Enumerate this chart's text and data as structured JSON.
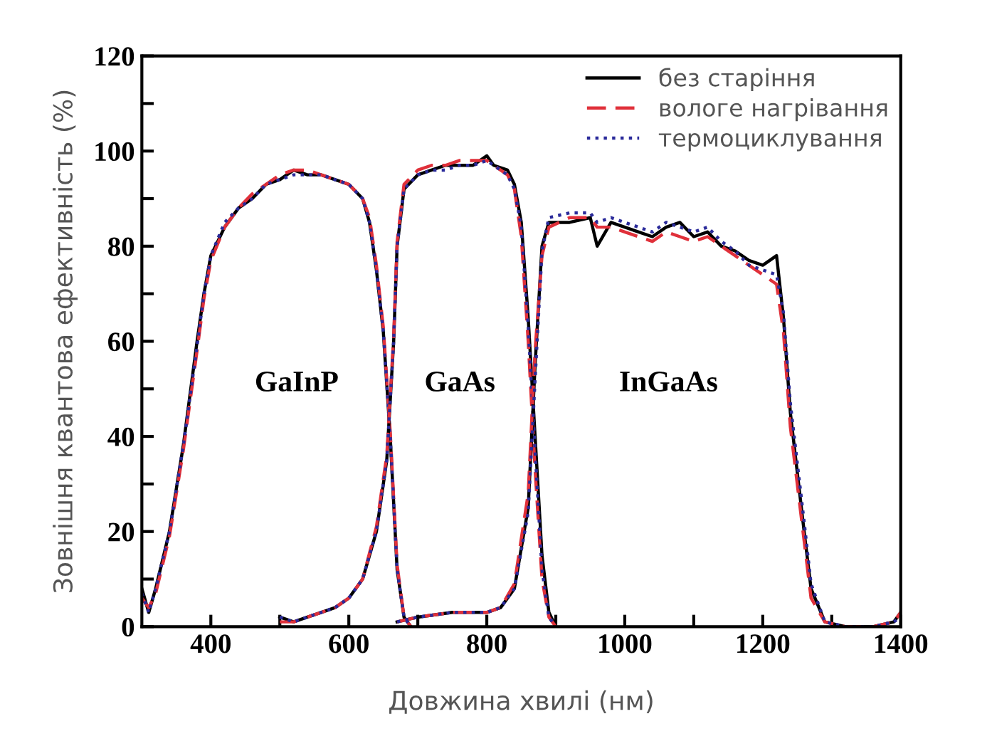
{
  "chart_data": {
    "type": "line",
    "xlabel": "Довжина хвилі (нм)",
    "ylabel": "Зовнішня квантова ефективність (%)",
    "xlim": [
      300,
      1400
    ],
    "ylim": [
      0,
      120
    ],
    "xticks": [
      400,
      {
        "value": 500,
        "label": null
      },
      600,
      {
        "value": 700,
        "label": null
      },
      800,
      {
        "value": 900,
        "label": null
      },
      1000,
      {
        "value": 1100,
        "label": null
      },
      1200,
      {
        "value": 1300,
        "label": null
      },
      1400
    ],
    "yticks": [
      0,
      {
        "value": 10,
        "label": null
      },
      20,
      {
        "value": 30,
        "label": null
      },
      40,
      {
        "value": 50,
        "label": null
      },
      60,
      {
        "value": 70,
        "label": null
      },
      80,
      {
        "value": 90,
        "label": null
      },
      100,
      {
        "value": 110,
        "label": null
      },
      120
    ],
    "grid": false,
    "legend": "top right",
    "marker": "none",
    "annotations": [
      "GaInP",
      "GaAs",
      "InGaAs"
    ],
    "series": [
      {
        "name": "без старіння",
        "color": "#000000",
        "line_style": "solid",
        "x": [
          300,
          310,
          320,
          340,
          360,
          380,
          390,
          400,
          420,
          440,
          460,
          480,
          500,
          520,
          540,
          560,
          580,
          600,
          620,
          630,
          640,
          650,
          660,
          670,
          680,
          690
        ],
        "values": [
          8,
          3,
          8,
          20,
          38,
          60,
          70,
          78,
          84,
          88,
          90,
          93,
          94,
          96,
          95,
          95,
          94,
          93,
          90,
          85,
          75,
          62,
          40,
          12,
          2,
          0
        ]
      },
      {
        "name": "вологе нагрівання",
        "color": "#e0303a",
        "line_style": "dashed",
        "x": [
          300,
          310,
          320,
          340,
          360,
          380,
          390,
          400,
          420,
          440,
          460,
          480,
          500,
          520,
          540,
          560,
          580,
          600,
          620,
          630,
          640,
          650,
          660,
          670,
          680,
          690
        ],
        "values": [
          6,
          4,
          7,
          19,
          37,
          58,
          69,
          77,
          84,
          88,
          91,
          93,
          95,
          96,
          96,
          95,
          94,
          93,
          90,
          86,
          76,
          63,
          41,
          13,
          2,
          0
        ]
      },
      {
        "name": "термоциклування",
        "color": "#2a2a9a",
        "line_style": "dotted",
        "x": [
          300,
          310,
          320,
          340,
          360,
          380,
          390,
          400,
          420,
          440,
          460,
          480,
          500,
          520,
          540,
          560,
          580,
          600,
          620,
          630,
          640,
          650,
          660,
          670,
          680,
          690
        ],
        "values": [
          7,
          3,
          8,
          20,
          38,
          59,
          70,
          78,
          85,
          88,
          90,
          93,
          94,
          95,
          95,
          95,
          94,
          93,
          90,
          85,
          75,
          62,
          40,
          12,
          2,
          0
        ]
      },
      {
        "color": "#000000",
        "line_style": "solid",
        "x": [
          500,
          520,
          540,
          560,
          580,
          600,
          620,
          640,
          655,
          665,
          670,
          680,
          700,
          720,
          740,
          760,
          780,
          800,
          810,
          830,
          840,
          850,
          860,
          870,
          880,
          890,
          900
        ],
        "values": [
          2,
          1,
          2,
          3,
          4,
          6,
          10,
          20,
          35,
          60,
          80,
          92,
          95,
          96,
          97,
          97,
          97,
          99,
          97,
          96,
          93,
          85,
          65,
          40,
          15,
          3,
          0
        ]
      },
      {
        "color": "#e0303a",
        "line_style": "dashed",
        "x": [
          500,
          520,
          540,
          560,
          580,
          600,
          620,
          640,
          655,
          665,
          670,
          680,
          700,
          720,
          740,
          760,
          780,
          800,
          810,
          830,
          840,
          850,
          860,
          870,
          880,
          890,
          900
        ],
        "values": [
          1,
          1,
          2,
          3,
          4,
          6,
          10,
          21,
          36,
          61,
          81,
          93,
          96,
          97,
          97,
          98,
          98,
          98,
          97,
          95,
          92,
          82,
          60,
          33,
          10,
          2,
          0
        ]
      },
      {
        "color": "#2a2a9a",
        "line_style": "dotted",
        "x": [
          500,
          520,
          540,
          560,
          580,
          600,
          620,
          640,
          655,
          665,
          670,
          680,
          700,
          720,
          740,
          760,
          780,
          800,
          810,
          830,
          840,
          850,
          860,
          870,
          880,
          890,
          900
        ],
        "values": [
          2,
          1,
          2,
          3,
          4,
          6,
          10,
          20,
          35,
          60,
          80,
          92,
          95,
          96,
          96,
          97,
          97,
          98,
          97,
          95,
          92,
          84,
          63,
          37,
          12,
          2,
          0
        ]
      },
      {
        "color": "#000000",
        "line_style": "solid",
        "x": [
          670,
          700,
          750,
          800,
          820,
          840,
          860,
          870,
          880,
          890,
          920,
          950,
          960,
          980,
          1000,
          1020,
          1040,
          1060,
          1080,
          1100,
          1120,
          1140,
          1160,
          1180,
          1200,
          1220,
          1230,
          1240,
          1260,
          1270,
          1290,
          1320,
          1360,
          1390,
          1400
        ],
        "values": [
          1,
          2,
          3,
          3,
          4,
          8,
          25,
          55,
          80,
          85,
          85,
          86,
          80,
          85,
          84,
          83,
          82,
          84,
          85,
          82,
          83,
          80,
          79,
          77,
          76,
          78,
          65,
          45,
          20,
          8,
          1,
          0,
          0,
          1,
          3
        ]
      },
      {
        "color": "#e0303a",
        "line_style": "dashed",
        "x": [
          670,
          700,
          750,
          800,
          820,
          840,
          860,
          870,
          880,
          890,
          920,
          950,
          960,
          980,
          1000,
          1020,
          1040,
          1060,
          1080,
          1100,
          1120,
          1140,
          1160,
          1180,
          1200,
          1220,
          1230,
          1240,
          1260,
          1270,
          1290,
          1320,
          1360,
          1390,
          1400
        ],
        "values": [
          1,
          2,
          3,
          3,
          4,
          9,
          28,
          58,
          78,
          84,
          86,
          86,
          84,
          84,
          83,
          82,
          81,
          83,
          82,
          81,
          82,
          80,
          78,
          76,
          74,
          72,
          62,
          42,
          18,
          6,
          1,
          0,
          0,
          1,
          3
        ]
      },
      {
        "color": "#2a2a9a",
        "line_style": "dotted",
        "x": [
          670,
          700,
          750,
          800,
          820,
          840,
          860,
          870,
          880,
          890,
          920,
          950,
          960,
          980,
          1000,
          1020,
          1040,
          1060,
          1080,
          1100,
          1120,
          1140,
          1160,
          1180,
          1200,
          1220,
          1230,
          1240,
          1260,
          1270,
          1290,
          1320,
          1360,
          1390,
          1400
        ],
        "values": [
          1,
          2,
          3,
          3,
          4,
          8,
          24,
          52,
          79,
          86,
          87,
          87,
          85,
          86,
          85,
          84,
          83,
          85,
          84,
          83,
          84,
          81,
          79,
          76,
          75,
          74,
          66,
          47,
          22,
          9,
          1,
          0,
          0,
          1,
          2
        ]
      }
    ]
  }
}
